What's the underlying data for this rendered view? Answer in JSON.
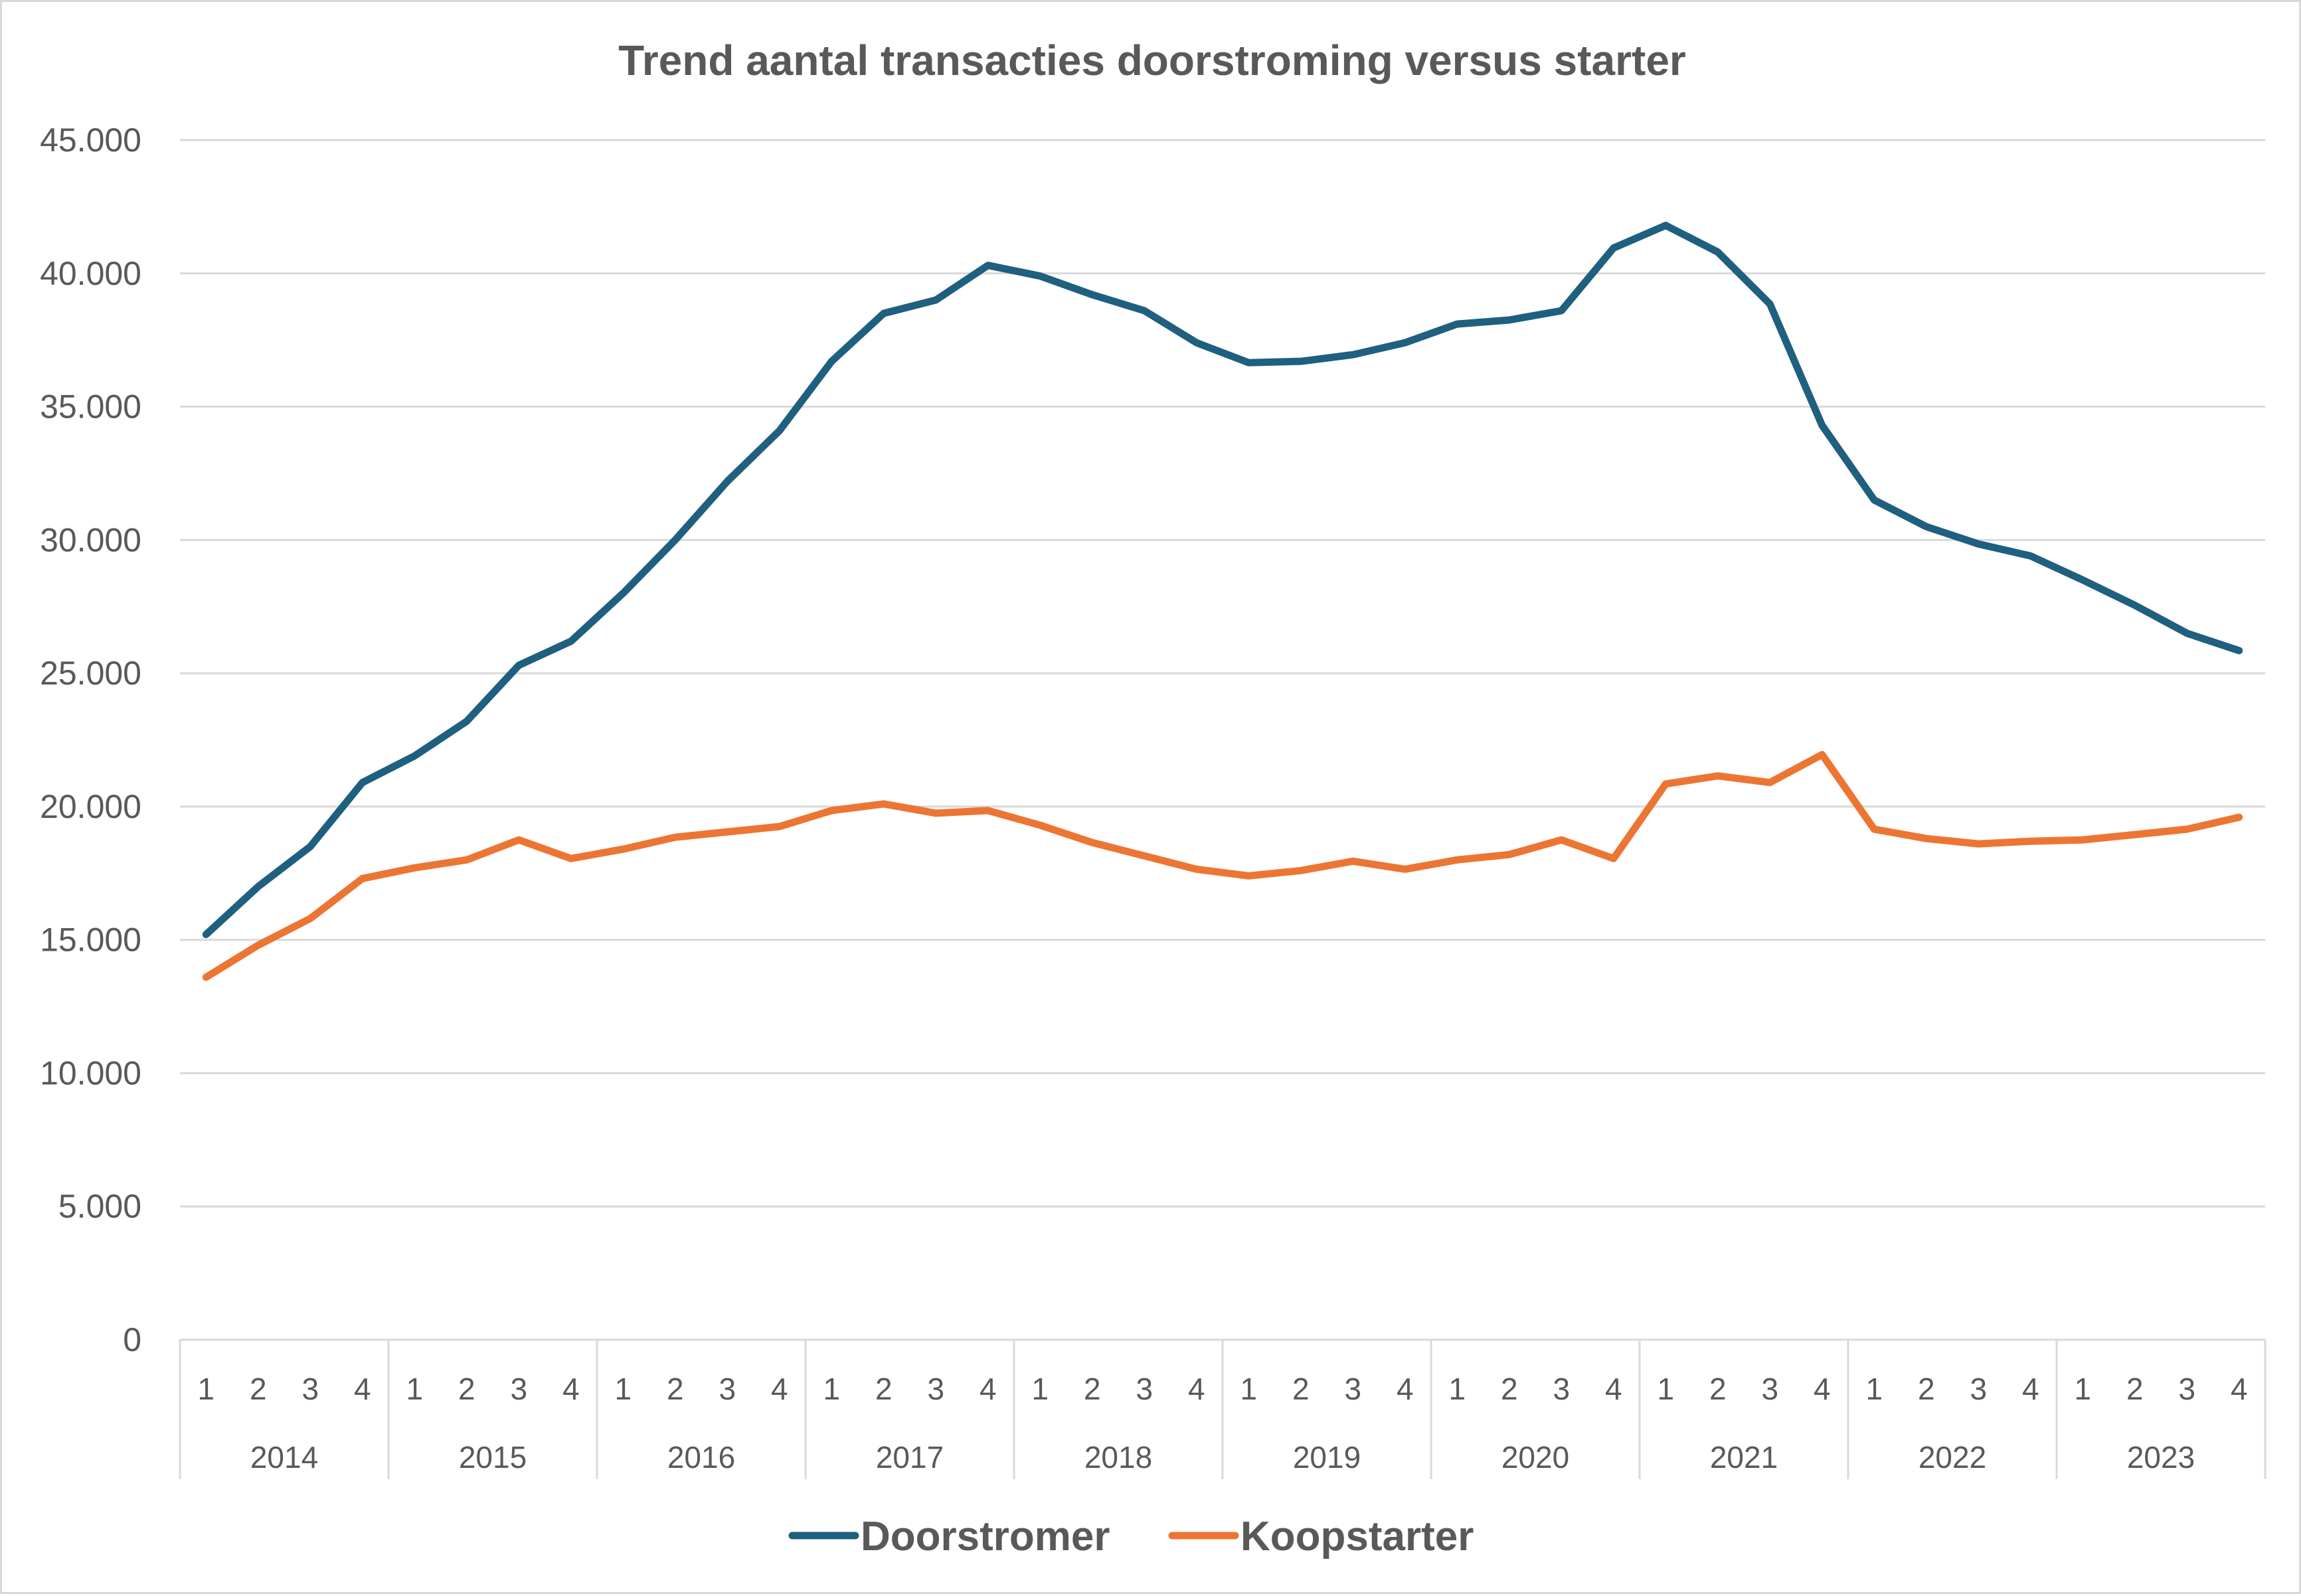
{
  "chart_data": {
    "type": "line",
    "title": "Trend aantal transacties doorstroming versus starter",
    "xlabel": "",
    "ylabel": "",
    "ylim": [
      0,
      45000
    ],
    "yticks": [
      0,
      5000,
      10000,
      15000,
      20000,
      25000,
      30000,
      35000,
      40000,
      45000
    ],
    "ytick_labels": [
      "0",
      "5.000",
      "10.000",
      "15.000",
      "20.000",
      "25.000",
      "30.000",
      "35.000",
      "40.000",
      "45.000"
    ],
    "grid": true,
    "legend_position": "bottom",
    "years": [
      "2014",
      "2015",
      "2016",
      "2017",
      "2018",
      "2019",
      "2020",
      "2021",
      "2022",
      "2023"
    ],
    "quarters": [
      "1",
      "2",
      "3",
      "4"
    ],
    "series": [
      {
        "name": "Doorstromer",
        "color": "#1f5f7f",
        "values": [
          15200,
          17000,
          18500,
          20900,
          21900,
          23200,
          25300,
          26200,
          28000,
          30000,
          32200,
          34100,
          36700,
          38500,
          39000,
          40300,
          39900,
          39200,
          38600,
          37400,
          36650,
          36700,
          36950,
          37400,
          38100,
          38250,
          38600,
          40950,
          41800,
          40800,
          38850,
          34300,
          31500,
          30500,
          29850,
          29400,
          28500,
          27550,
          26500,
          25850
        ]
      },
      {
        "name": "Koopstarter",
        "color": "#ed7533",
        "values": [
          13600,
          14800,
          15800,
          17300,
          17700,
          18000,
          18750,
          18050,
          18400,
          18850,
          19050,
          19250,
          19850,
          20100,
          19750,
          19850,
          19300,
          18650,
          18150,
          17650,
          17400,
          17600,
          17950,
          17650,
          18000,
          18200,
          18750,
          18050,
          20850,
          21150,
          20900,
          21950,
          19150,
          18800,
          18600,
          18700,
          18750,
          18950,
          19150,
          19600
        ]
      }
    ]
  }
}
